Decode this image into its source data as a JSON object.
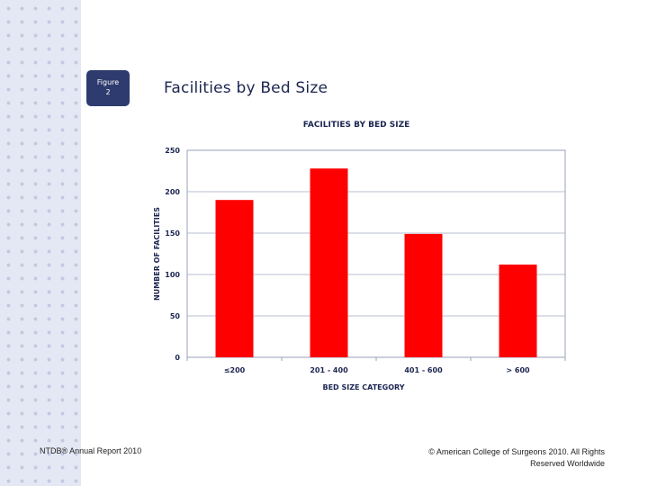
{
  "figure_badge": {
    "line1": "Figure",
    "line2": "2"
  },
  "slide_title": "Facilities by Bed Size",
  "footer": {
    "left": "NTDB® Annual Report 2010",
    "right": "© American College of Surgeons 2010. All Rights Reserved Worldwide"
  },
  "colors": {
    "bar": "#ff0000",
    "title_text": "#1b2550",
    "badge": "#2e3b6e"
  },
  "chart_data": {
    "type": "bar",
    "title": "FACILITIES BY BED SIZE",
    "xlabel": "BED SIZE CATEGORY",
    "ylabel": "NUMBER OF FACILITIES",
    "categories": [
      "≤200",
      "201 - 400",
      "401 - 600",
      "> 600"
    ],
    "values": [
      190,
      228,
      149,
      112
    ],
    "ylim": [
      0,
      250
    ],
    "yticks": [
      0,
      50,
      100,
      150,
      200,
      250
    ],
    "grid": true,
    "legend": "none"
  }
}
